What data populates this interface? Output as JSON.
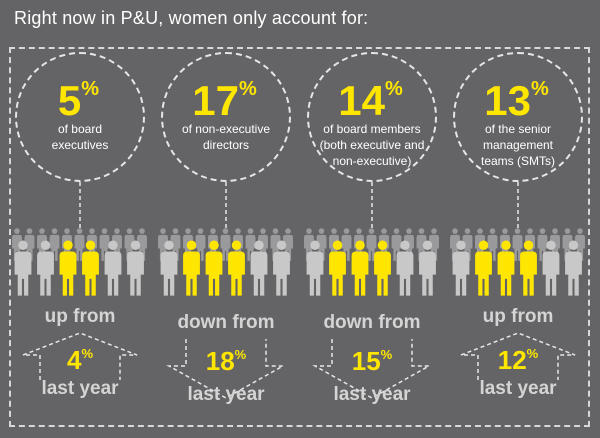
{
  "title": "Right now in P&U, women only account for:",
  "stats": [
    {
      "value": "5",
      "unit": "%",
      "description": [
        "of board",
        "executives"
      ],
      "trend": "up from",
      "direction": "up",
      "previous": "4",
      "previous_unit": "%",
      "last_year": "last year",
      "women_of_10": 3
    },
    {
      "value": "17",
      "unit": "%",
      "description": [
        "of non-executive",
        "directors"
      ],
      "trend": "down from",
      "direction": "down",
      "previous": "18",
      "previous_unit": "%",
      "last_year": "last year",
      "women_of_10": 5
    },
    {
      "value": "14",
      "unit": "%",
      "description": [
        "of board members",
        "(both executive and",
        "non-executive)"
      ],
      "trend": "down from",
      "direction": "down",
      "previous": "15",
      "previous_unit": "%",
      "last_year": "last year",
      "women_of_10": 5
    },
    {
      "value": "13",
      "unit": "%",
      "description": [
        "of the senior",
        "management",
        "teams (SMTs)"
      ],
      "trend": "up from",
      "direction": "up",
      "previous": "12",
      "previous_unit": "%",
      "last_year": "last year",
      "women_of_10": 4
    }
  ],
  "colors": {
    "background": "#646466",
    "accent": "#ffe600",
    "person_grey": "#c8c8c8",
    "text": "#ffffff"
  }
}
